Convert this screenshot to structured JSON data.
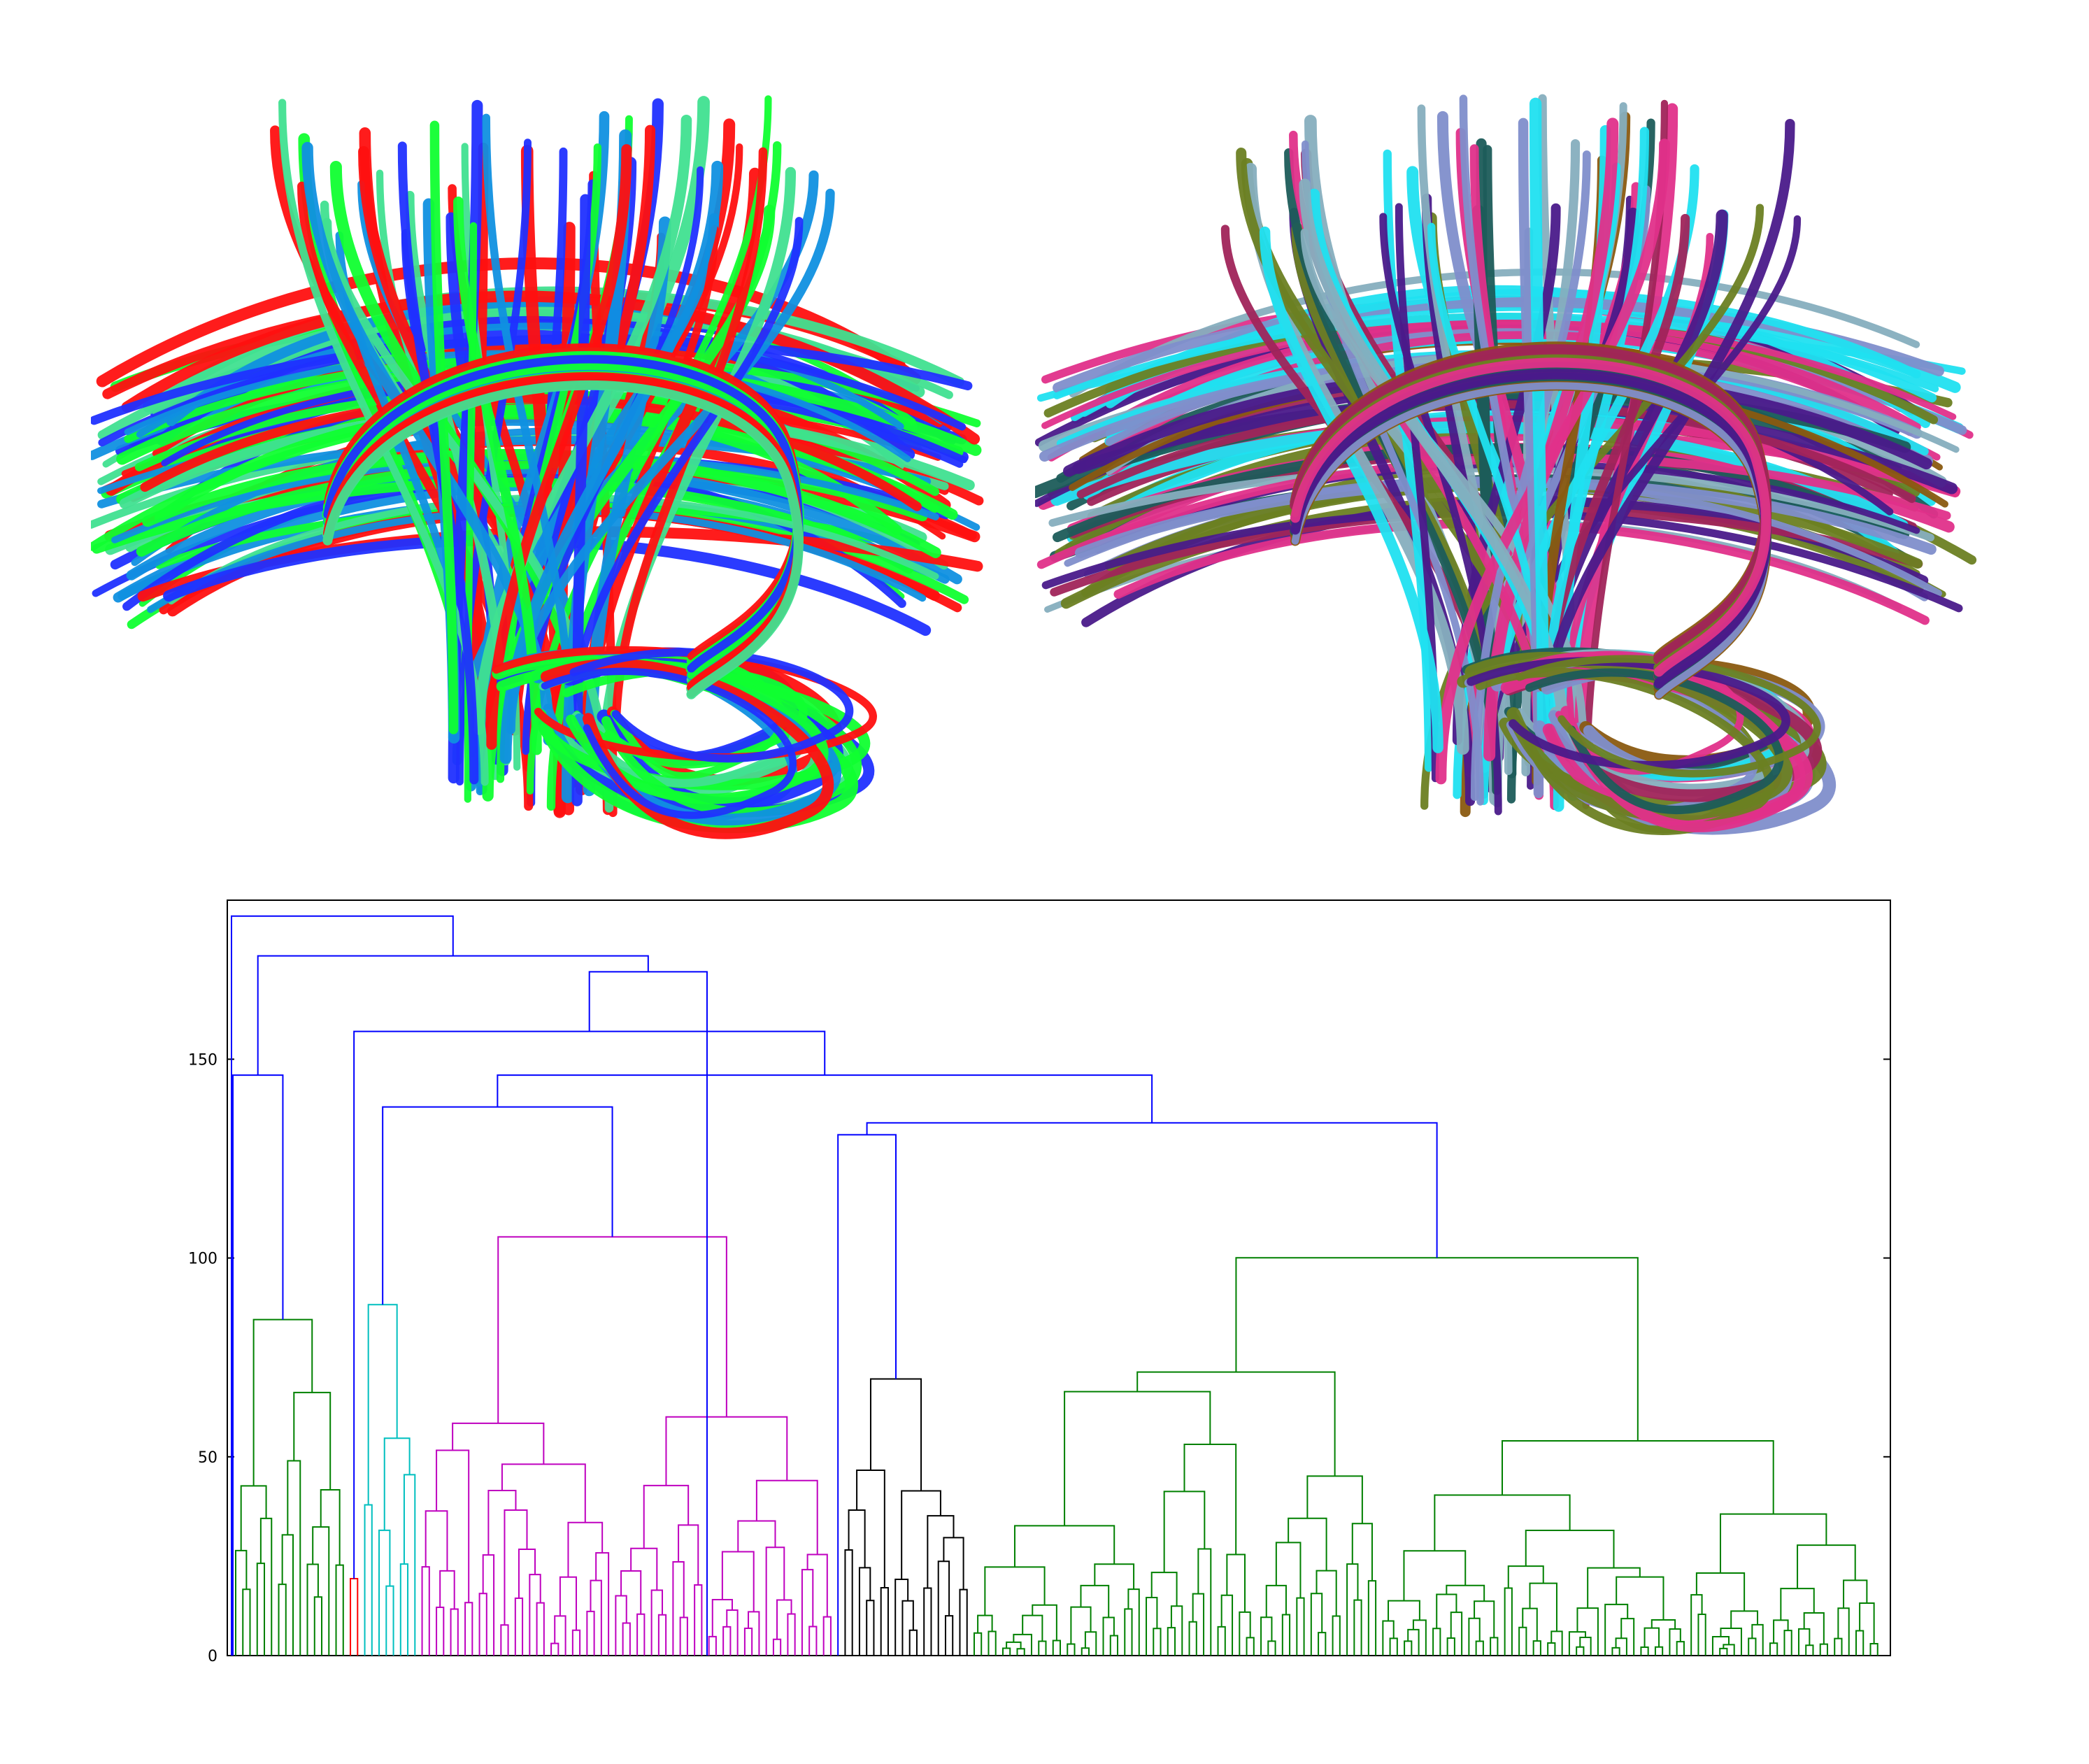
{
  "left_render": {
    "description_colors": [
      "#ff1010",
      "#10ff30",
      "#2030ff",
      "#1090e0",
      "#40e090"
    ]
  },
  "right_render": {
    "description_colors": [
      "#e0308a",
      "#1c5c5a",
      "#6b7f22",
      "#7f8ecb",
      "#8a5a10",
      "#a0245a",
      "#86aebe",
      "#4a1a8a",
      "#20e0f0"
    ]
  },
  "dendrogram": {
    "y_ticks": [
      "0",
      "50",
      "100",
      "150"
    ],
    "y_range": [
      0,
      190
    ],
    "cluster_colors": {
      "blue": "#0000ff",
      "green": "#008000",
      "red": "#ff0000",
      "cyan": "#00bfbf",
      "magenta": "#bf00bf",
      "yellow": "#bfbf00",
      "black": "#000000"
    }
  }
}
